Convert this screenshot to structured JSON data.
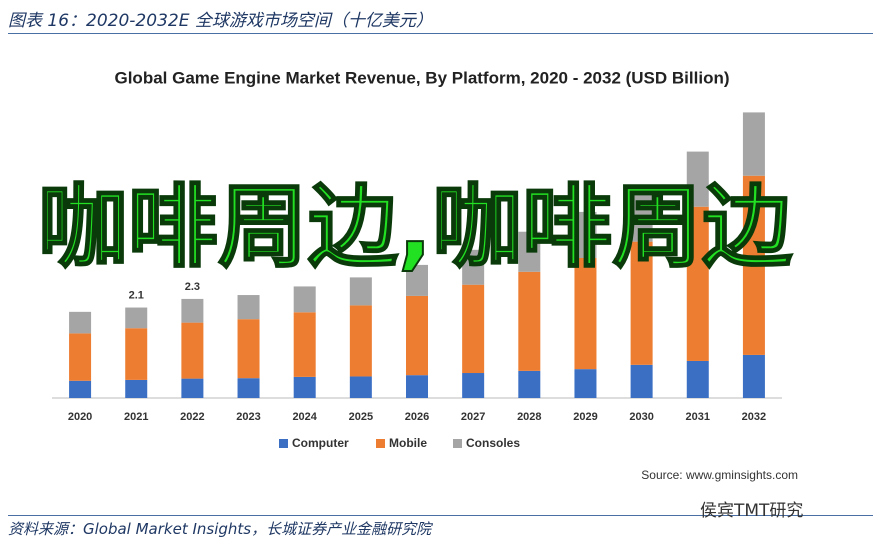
{
  "header": {
    "title": "图表 16：2020-2032E 全球游戏市场空间（十亿美元）"
  },
  "footer": {
    "source": "资料来源：Global Market Insights，长城证券产业金融研究院"
  },
  "watermark": "侯宾TMT研究",
  "overlay_text": "咖啡周边,咖啡周边",
  "chart_data": {
    "type": "stacked_bar",
    "title": "Global Game Engine Market Revenue, By Platform, 2020 - 2032 (USD Billion)",
    "source_note": "Source: www.gminsights.com",
    "categories": [
      "2020",
      "2021",
      "2022",
      "2023",
      "2024",
      "2025",
      "2026",
      "2027",
      "2028",
      "2029",
      "2030",
      "2031",
      "2032"
    ],
    "series": [
      {
        "name": "Computer",
        "color": "#3a6fc4",
        "values": [
          0.4,
          0.42,
          0.45,
          0.46,
          0.49,
          0.5,
          0.53,
          0.58,
          0.63,
          0.67,
          0.77,
          0.86,
          1.0
        ]
      },
      {
        "name": "Mobile",
        "color": "#ed7d31",
        "values": [
          1.1,
          1.2,
          1.3,
          1.37,
          1.5,
          1.65,
          1.84,
          2.05,
          2.3,
          2.58,
          2.86,
          3.58,
          4.16
        ]
      },
      {
        "name": "Consoles",
        "color": "#a5a5a5",
        "values": [
          0.5,
          0.48,
          0.55,
          0.56,
          0.6,
          0.65,
          0.72,
          0.81,
          0.93,
          1.07,
          1.26,
          1.28,
          1.47
        ]
      }
    ],
    "total_labels": [
      null,
      "2.1",
      "2.3",
      null,
      null,
      null,
      null,
      null,
      null,
      null,
      null,
      null,
      null
    ],
    "ylim": [
      0,
      6.5
    ]
  }
}
